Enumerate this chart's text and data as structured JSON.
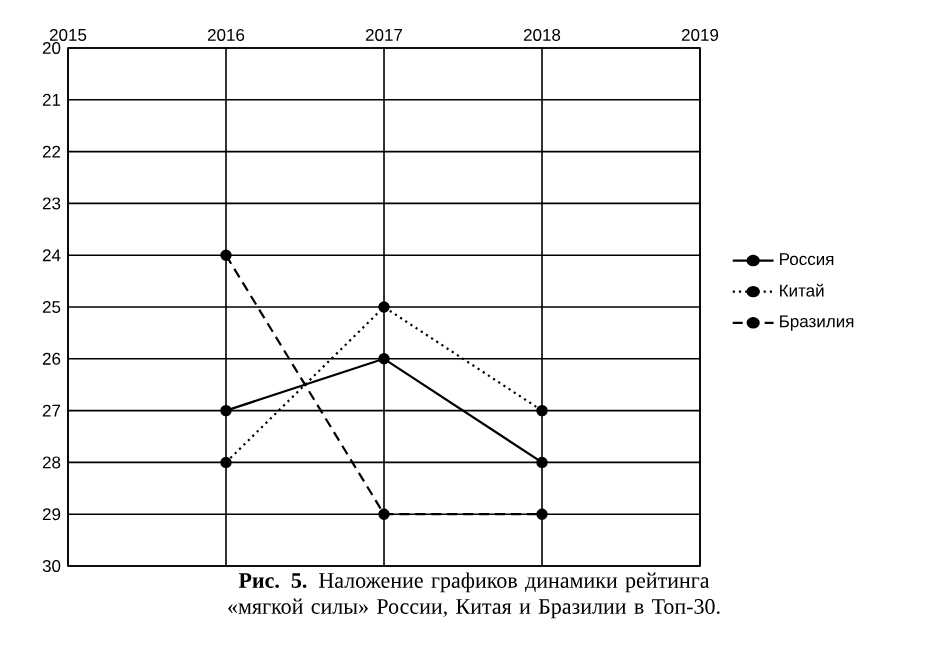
{
  "chart_data": {
    "type": "line",
    "x": [
      2016,
      2017,
      2018
    ],
    "series": [
      {
        "name": "Россия",
        "color": "#000000",
        "line_style": "solid",
        "values": [
          27,
          26,
          28
        ]
      },
      {
        "name": "Китай",
        "color": "#000000",
        "line_style": "dotted",
        "values": [
          28,
          25,
          27
        ]
      },
      {
        "name": "Бразилия",
        "color": "#000000",
        "line_style": "dashed",
        "values": [
          24,
          29,
          29
        ]
      }
    ],
    "xlim": [
      2015,
      2019
    ],
    "xticks": [
      2015,
      2016,
      2017,
      2018,
      2019
    ],
    "ylim": [
      30,
      20
    ],
    "yticks": [
      20,
      21,
      22,
      23,
      24,
      25,
      26,
      27,
      28,
      29,
      30
    ],
    "grid": true,
    "legend": "right",
    "marker": "circle",
    "annotations": [
      "**Рис. 5.** Наложение графиков динамики рейтинга «мягкой силы» России, Китая и Бразилии в Топ-30."
    ]
  }
}
